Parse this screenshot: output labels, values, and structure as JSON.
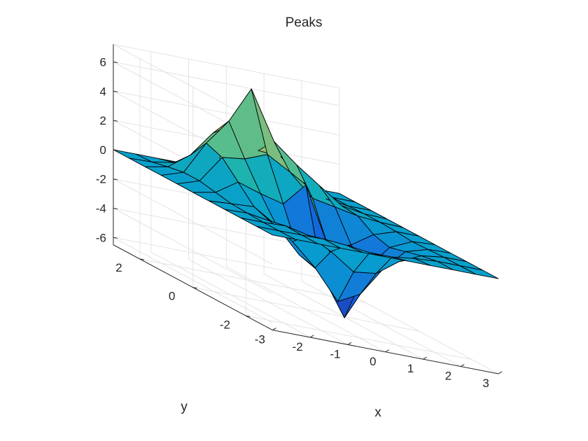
{
  "chart_data": {
    "type": "surface",
    "title": "Peaks",
    "xlabel": "x",
    "ylabel": "y",
    "zlabel": "",
    "xlim": [
      -3,
      3
    ],
    "ylim": [
      -3,
      3
    ],
    "zlim": [
      -6.5,
      7.2
    ],
    "x_ticks": [
      -3,
      -2,
      -1,
      0,
      1,
      2,
      3
    ],
    "y_ticks": [
      -2,
      0,
      2
    ],
    "z_ticks": [
      -6,
      -4,
      -2,
      0,
      2,
      4,
      6
    ],
    "x_tick_labels": [
      "-3",
      "-2",
      "-1",
      "0",
      "1",
      "2",
      "3"
    ],
    "y_tick_labels": [
      "-2",
      "0",
      "2"
    ],
    "z_tick_labels": [
      "-6",
      "-4",
      "-2",
      "0",
      "2",
      "4",
      "6"
    ],
    "grid": true,
    "colormap": "parula",
    "grid_points_x": [
      -3,
      -2.4,
      -1.8,
      -1.2,
      -0.6,
      0,
      0.6,
      1.2,
      1.8,
      2.4,
      3
    ],
    "grid_points_y": [
      -3,
      -2.4,
      -1.8,
      -1.2,
      -0.6,
      0,
      0.6,
      1.2,
      1.8,
      2.4,
      3
    ],
    "z": [
      [
        0.0,
        0.0,
        0.0,
        0.0,
        0.0,
        0.0,
        0.0,
        0.0,
        0.0,
        0.0,
        0.0
      ],
      [
        0.0,
        0.0,
        0.01,
        0.02,
        -0.1,
        -0.3,
        -0.3,
        -0.1,
        0.0,
        0.0,
        0.0
      ],
      [
        0.0,
        0.0,
        0.05,
        -0.3,
        -1.1,
        -2.2,
        -2.0,
        -0.9,
        -0.2,
        0.0,
        0.0
      ],
      [
        0.0,
        0.05,
        -0.2,
        -1.3,
        -2.8,
        -4.8,
        -4.0,
        -2.0,
        -0.5,
        -0.05,
        0.0
      ],
      [
        0.0,
        0.1,
        0.2,
        -0.8,
        -2.5,
        -3.5,
        -6.2,
        -2.5,
        -0.8,
        -0.1,
        0.0
      ],
      [
        0.0,
        0.3,
        1.3,
        0.8,
        0.4,
        2.0,
        -2.0,
        -1.5,
        -0.5,
        0.0,
        0.0
      ],
      [
        0.0,
        0.5,
        2.4,
        2.6,
        3.2,
        2.3,
        0.8,
        0.5,
        0.2,
        0.05,
        0.0
      ],
      [
        0.0,
        0.5,
        2.8,
        4.6,
        7.1,
        3.8,
        2.5,
        1.4,
        0.3,
        0.05,
        0.0
      ],
      [
        0.0,
        0.3,
        1.4,
        3.2,
        4.2,
        2.6,
        2.5,
        1.0,
        0.2,
        0.0,
        0.0
      ],
      [
        0.0,
        0.05,
        0.3,
        0.8,
        1.2,
        0.9,
        0.6,
        0.3,
        0.05,
        0.0,
        0.0
      ],
      [
        0.0,
        0.0,
        0.0,
        0.0,
        0.0,
        0.0,
        0.0,
        0.0,
        0.0,
        0.0,
        0.0
      ]
    ]
  }
}
